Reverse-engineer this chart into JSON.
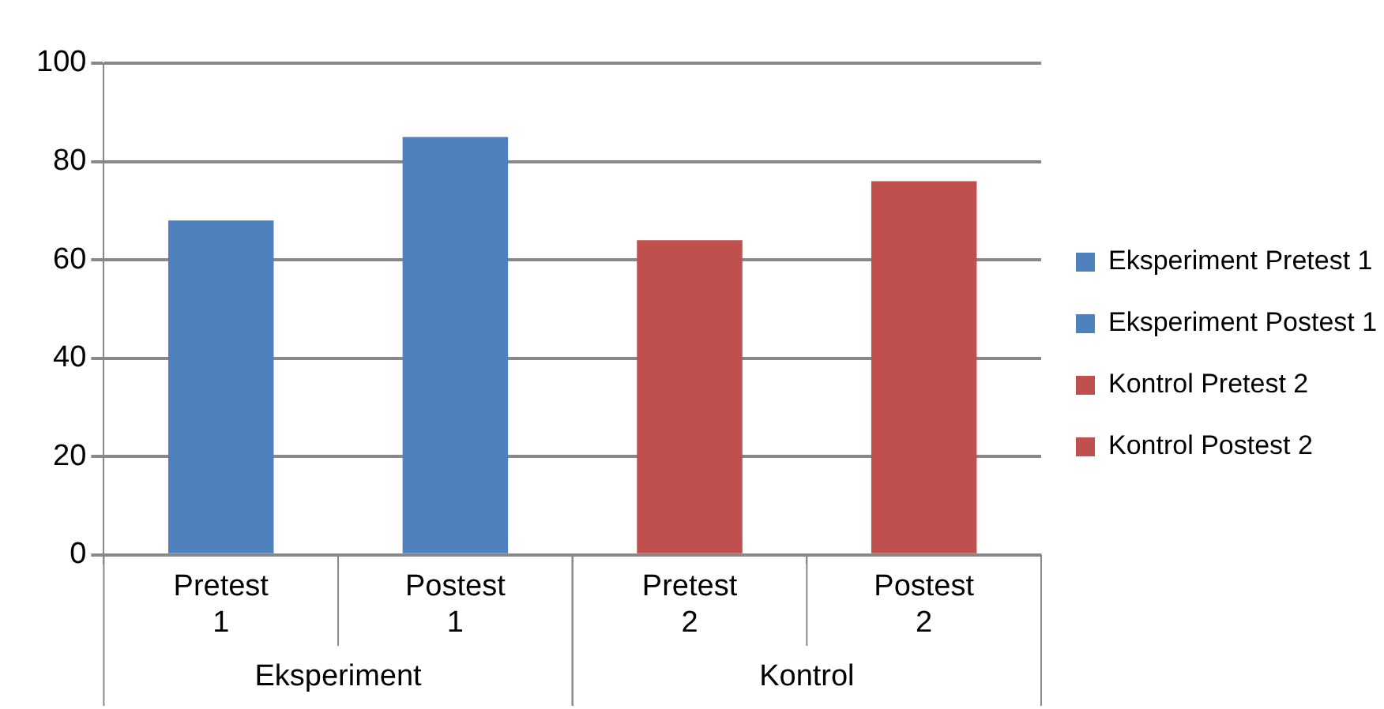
{
  "chart_data": {
    "type": "bar",
    "categories": [
      "Pretest 1",
      "Postest 1",
      "Pretest 2",
      "Postest 2"
    ],
    "series": [
      {
        "name": "Eksperiment Pretest 1",
        "color": "#4f81bd",
        "values": [
          68,
          null,
          null,
          null
        ]
      },
      {
        "name": "Eksperiment Postest 1",
        "color": "#4f81bd",
        "values": [
          null,
          85,
          null,
          null
        ]
      },
      {
        "name": "Kontrol Pretest 2",
        "color": "#c0504d",
        "values": [
          null,
          null,
          64,
          null
        ]
      },
      {
        "name": "Kontrol Postest 2",
        "color": "#c0504d",
        "values": [
          null,
          null,
          null,
          76
        ]
      }
    ],
    "annotations": [
      "Eksperiment",
      "Kontrol"
    ],
    "ylim": [
      0,
      100
    ],
    "yticks": [
      0,
      20,
      40,
      60,
      80,
      100
    ],
    "grid": "y",
    "legend": "right"
  }
}
